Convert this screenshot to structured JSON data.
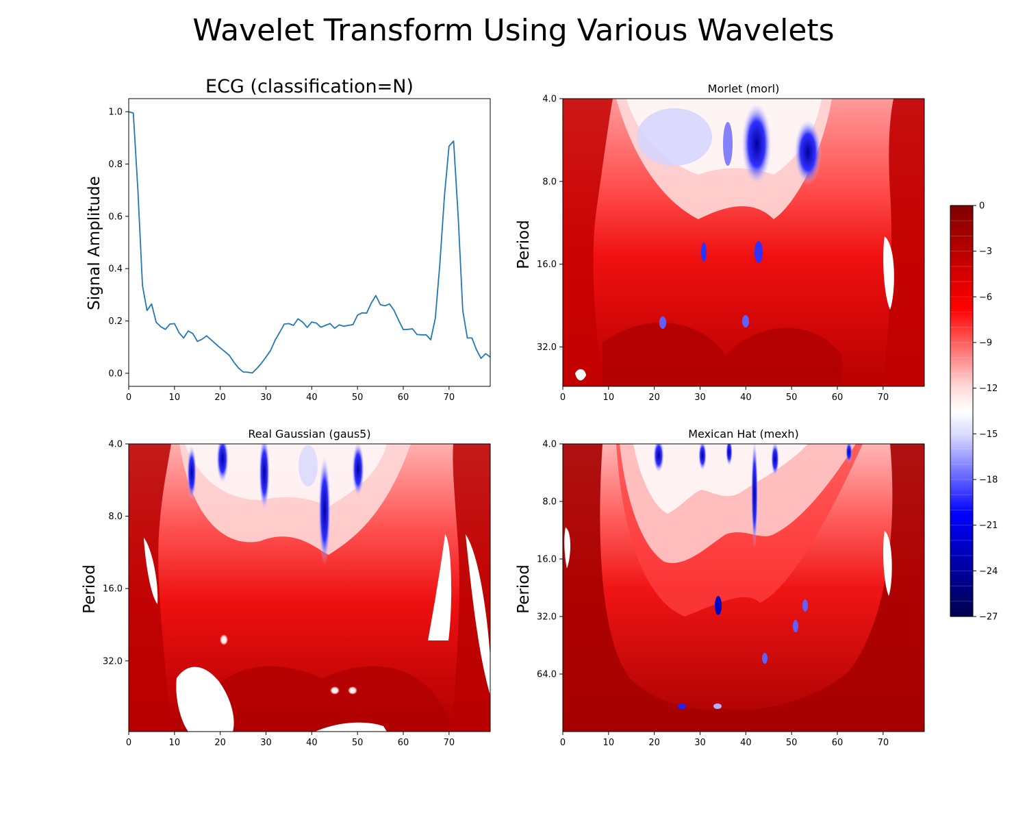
{
  "title": "Wavelet Transform Using Various Wavelets",
  "colorbar": {
    "ticks": [
      "0",
      "−3",
      "−6",
      "−9",
      "−12",
      "−15",
      "−18",
      "−21",
      "−24",
      "−27"
    ],
    "min": -27,
    "max": 0,
    "levels": 27,
    "colormap": "seismic",
    "colors": {
      "low": "#00004d",
      "mid": "#ffffff",
      "high": "#800000"
    }
  },
  "panels": {
    "ecg": {
      "title": "ECG (classification=N)",
      "ylabel": "Signal Amplitude",
      "xticks": [
        "0",
        "10",
        "20",
        "30",
        "40",
        "50",
        "60",
        "70"
      ],
      "yticks": [
        "0.0",
        "0.2",
        "0.4",
        "0.6",
        "0.8",
        "1.0"
      ],
      "line_color": "#1f77b4"
    },
    "morlet": {
      "title": "Morlet (morl)",
      "ylabel": "Period",
      "xticks": [
        "0",
        "10",
        "20",
        "30",
        "40",
        "50",
        "60",
        "70"
      ],
      "yticks": [
        "4.0",
        "8.0",
        "16.0",
        "32.0"
      ]
    },
    "gauss": {
      "title": "Real Gaussian (gaus5)",
      "ylabel": "Period",
      "xticks": [
        "0",
        "10",
        "20",
        "30",
        "40",
        "50",
        "60",
        "70"
      ],
      "yticks": [
        "4.0",
        "8.0",
        "16.0",
        "32.0"
      ]
    },
    "mexh": {
      "title": "Mexican Hat (mexh)",
      "ylabel": "Period",
      "xticks": [
        "0",
        "10",
        "20",
        "30",
        "40",
        "50",
        "60",
        "70"
      ],
      "yticks": [
        "4.0",
        "8.0",
        "16.0",
        "32.0",
        "64.0"
      ]
    }
  },
  "chart_data": [
    {
      "type": "line",
      "title": "ECG (classification=N)",
      "xlabel": "",
      "ylabel": "Signal Amplitude",
      "xlim": [
        0,
        79
      ],
      "ylim": [
        -0.05,
        1.05
      ],
      "x": [
        0,
        1,
        2,
        3,
        4,
        5,
        6,
        7,
        8,
        9,
        10,
        11,
        12,
        13,
        14,
        15,
        16,
        17,
        18,
        19,
        20,
        21,
        22,
        23,
        24,
        25,
        26,
        27,
        28,
        29,
        30,
        31,
        32,
        33,
        34,
        35,
        36,
        37,
        38,
        39,
        40,
        41,
        42,
        43,
        44,
        45,
        46,
        47,
        48,
        49,
        50,
        51,
        52,
        53,
        54,
        55,
        56,
        57,
        58,
        59,
        60,
        61,
        62,
        63,
        64,
        65,
        66,
        67,
        68,
        69,
        70,
        71,
        72,
        73,
        74,
        75,
        76,
        77,
        78,
        79
      ],
      "y": [
        1.0,
        0.995,
        0.7,
        0.335,
        0.24,
        0.265,
        0.195,
        0.178,
        0.168,
        0.188,
        0.19,
        0.155,
        0.135,
        0.162,
        0.152,
        0.122,
        0.13,
        0.143,
        0.128,
        0.112,
        0.097,
        0.083,
        0.068,
        0.042,
        0.02,
        0.005,
        0.004,
        0.001,
        0.018,
        0.038,
        0.062,
        0.087,
        0.127,
        0.157,
        0.188,
        0.19,
        0.183,
        0.208,
        0.196,
        0.175,
        0.196,
        0.192,
        0.176,
        0.183,
        0.19,
        0.172,
        0.185,
        0.18,
        0.183,
        0.186,
        0.222,
        0.231,
        0.23,
        0.268,
        0.297,
        0.262,
        0.258,
        0.265,
        0.24,
        0.202,
        0.167,
        0.168,
        0.17,
        0.148,
        0.147,
        0.147,
        0.128,
        0.21,
        0.42,
        0.68,
        0.868,
        0.888,
        0.6,
        0.24,
        0.135,
        0.135,
        0.09,
        0.057,
        0.075,
        0.062
      ]
    },
    {
      "type": "heatmap",
      "title": "Morlet (morl)",
      "ylabel": "Period",
      "xlim": [
        0,
        79
      ],
      "yticks": [
        4.0,
        8.0,
        16.0,
        32.0
      ],
      "yscale": "log2",
      "zlim": [
        -27,
        0
      ]
    },
    {
      "type": "heatmap",
      "title": "Real Gaussian (gaus5)",
      "ylabel": "Period",
      "xlim": [
        0,
        79
      ],
      "yticks": [
        4.0,
        8.0,
        16.0,
        32.0
      ],
      "yscale": "log2",
      "zlim": [
        -27,
        0
      ]
    },
    {
      "type": "heatmap",
      "title": "Mexican Hat (mexh)",
      "ylabel": "Period",
      "xlim": [
        0,
        79
      ],
      "yticks": [
        4.0,
        8.0,
        16.0,
        32.0,
        64.0
      ],
      "yscale": "log2",
      "zlim": [
        -27,
        0
      ]
    }
  ]
}
